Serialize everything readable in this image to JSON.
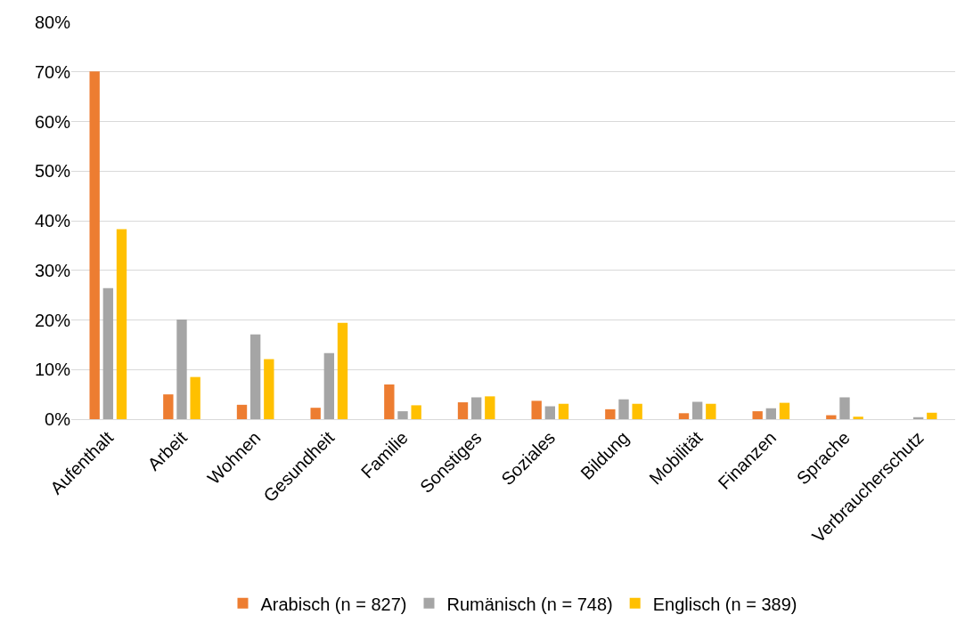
{
  "chart_data": {
    "type": "bar",
    "categories": [
      "Aufenthalt",
      "Arbeit",
      "Wohnen",
      "Gesundheit",
      "Familie",
      "Sonstiges",
      "Soziales",
      "Bildung",
      "Mobilität",
      "Finanzen",
      "Sprache",
      "Verbraucherschutz"
    ],
    "series": [
      {
        "name": "Arabisch (n = 827)",
        "color": "#ed7d31",
        "values": [
          70.1,
          5.0,
          2.9,
          2.3,
          7.0,
          3.4,
          3.7,
          2.0,
          1.2,
          1.6,
          0.8,
          0
        ]
      },
      {
        "name": "Rumänisch (n = 748)",
        "color": "#a5a5a5",
        "values": [
          26.4,
          20.1,
          17.1,
          13.3,
          1.6,
          4.4,
          2.6,
          4.0,
          3.5,
          2.2,
          4.4,
          0.4
        ]
      },
      {
        "name": "Englisch (n = 389)",
        "color": "#ffc000",
        "values": [
          38.3,
          8.5,
          12.1,
          19.4,
          2.8,
          4.6,
          3.1,
          3.1,
          3.1,
          3.3,
          0.5,
          1.3
        ]
      }
    ],
    "ylim": [
      0,
      80
    ],
    "yticks": [
      {
        "value": 0,
        "label": "0%"
      },
      {
        "value": 10,
        "label": "10%"
      },
      {
        "value": 20,
        "label": "20%"
      },
      {
        "value": 30,
        "label": "30%"
      },
      {
        "value": 40,
        "label": "40%"
      },
      {
        "value": 50,
        "label": "50%"
      },
      {
        "value": 60,
        "label": "60%"
      },
      {
        "value": 70,
        "label": "70%"
      },
      {
        "value": 80,
        "label": "80%"
      }
    ],
    "grid": "y",
    "legend": "bottom"
  }
}
